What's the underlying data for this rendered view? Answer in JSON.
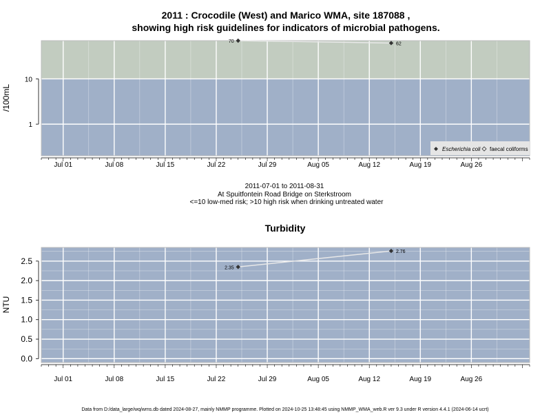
{
  "chart_data": [
    {
      "type": "line",
      "title": "2011 : Crocodile (West) and Marico WMA, site 187088 ,",
      "subtitle": "showing high risk guidelines for indicators of microbial pathogens.",
      "ylabel": "/100mL",
      "xlabel": "",
      "y_scale": "log",
      "ylim": [
        0.2,
        70
      ],
      "xlim": [
        "2011-06-28",
        "2011-09-03"
      ],
      "x_tick_labels": [
        "Jul 01",
        "Jul 08",
        "Jul 15",
        "Jul 22",
        "Jul 29",
        "Aug 05",
        "Aug 12",
        "Aug 19",
        "Aug 26"
      ],
      "y_tick_labels": [
        "1",
        "10"
      ],
      "grid": true,
      "threshold": 10,
      "colors": {
        "above_threshold": "#c2ccc0",
        "below_threshold": "#a0b0c8",
        "gridline": "#ffffff",
        "series": "#333333"
      },
      "series": [
        {
          "name": "Escherichia coli",
          "marker": "filled-diamond",
          "points": [
            {
              "x": "2011-07-25",
              "y": 70,
              "label": "70"
            },
            {
              "x": "2011-08-15",
              "y": 62,
              "label": "62"
            }
          ]
        },
        {
          "name": "faecal coliforms",
          "marker": "open-diamond",
          "points": []
        }
      ],
      "legend": {
        "placement": "bottom-right",
        "entries": [
          "Escherichia coli",
          "faecal coliforms"
        ]
      },
      "notes": [
        "2011-07-01 to 2011-08-31",
        "At Spuitfontein Road Bridge on Sterkstroom",
        "<=10 low-med risk; >10 high risk when drinking untreated water"
      ]
    },
    {
      "type": "line",
      "title": "Turbidity",
      "ylabel": "NTU",
      "xlabel": "",
      "ylim": [
        -0.1,
        2.85
      ],
      "xlim": [
        "2011-06-28",
        "2011-09-03"
      ],
      "x_tick_labels": [
        "Jul 01",
        "Jul 08",
        "Jul 15",
        "Jul 22",
        "Jul 29",
        "Aug 05",
        "Aug 12",
        "Aug 19",
        "Aug 26"
      ],
      "y_tick_labels": [
        "0.0",
        "0.5",
        "1.0",
        "1.5",
        "2.0",
        "2.5"
      ],
      "grid": true,
      "colors": {
        "background": "#a0b0c8",
        "gridline": "#ffffff",
        "series": "#333333"
      },
      "series": [
        {
          "points": [
            {
              "x": "2011-07-25",
              "y": 2.35,
              "label": "2.35"
            },
            {
              "x": "2011-08-15",
              "y": 2.76,
              "label": "2.76"
            }
          ]
        }
      ]
    }
  ],
  "footer": {
    "text": "Data from D:/data_large/wq/wms.db dated 2024-08-27, mainly NMMP programme. Plotted on 2024-10-25 13:48:45 using NMMP_WMA_web.R ver 9.3 under R version 4.4.1 (2024-06-14 ucrt)"
  }
}
